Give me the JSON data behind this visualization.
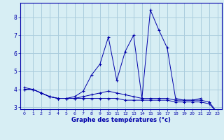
{
  "title": "Graphe des températures (°c)",
  "background_color": "#d7eef4",
  "grid_color": "#aaccdd",
  "line_color": "#0000aa",
  "x_labels": [
    "0",
    "1",
    "2",
    "3",
    "4",
    "5",
    "6",
    "7",
    "8",
    "9",
    "10",
    "11",
    "12",
    "13",
    "14",
    "15",
    "16",
    "17",
    "18",
    "19",
    "20",
    "21",
    "22",
    "23"
  ],
  "series1": [
    4.1,
    4.0,
    3.8,
    3.6,
    3.5,
    3.5,
    3.6,
    3.9,
    4.8,
    5.4,
    6.9,
    4.5,
    6.1,
    7.0,
    3.5,
    8.4,
    7.3,
    6.3,
    3.5,
    3.4,
    3.4,
    3.5,
    null,
    null
  ],
  "series2": [
    4.0,
    4.0,
    3.8,
    3.6,
    3.5,
    3.5,
    3.5,
    3.6,
    3.7,
    3.8,
    3.9,
    3.8,
    3.7,
    3.6,
    3.5,
    3.5,
    3.5,
    3.5,
    3.4,
    3.4,
    3.4,
    3.4,
    3.3,
    2.7
  ],
  "series3": [
    4.0,
    4.0,
    3.8,
    3.6,
    3.5,
    3.5,
    3.5,
    3.5,
    3.5,
    3.5,
    3.5,
    3.5,
    3.4,
    3.4,
    3.4,
    3.4,
    3.4,
    3.4,
    3.3,
    3.3,
    3.3,
    3.3,
    3.2,
    2.7
  ],
  "ylim": [
    2.9,
    8.8
  ],
  "yticks": [
    3,
    4,
    5,
    6,
    7,
    8
  ],
  "xlim": [
    -0.5,
    23.5
  ]
}
